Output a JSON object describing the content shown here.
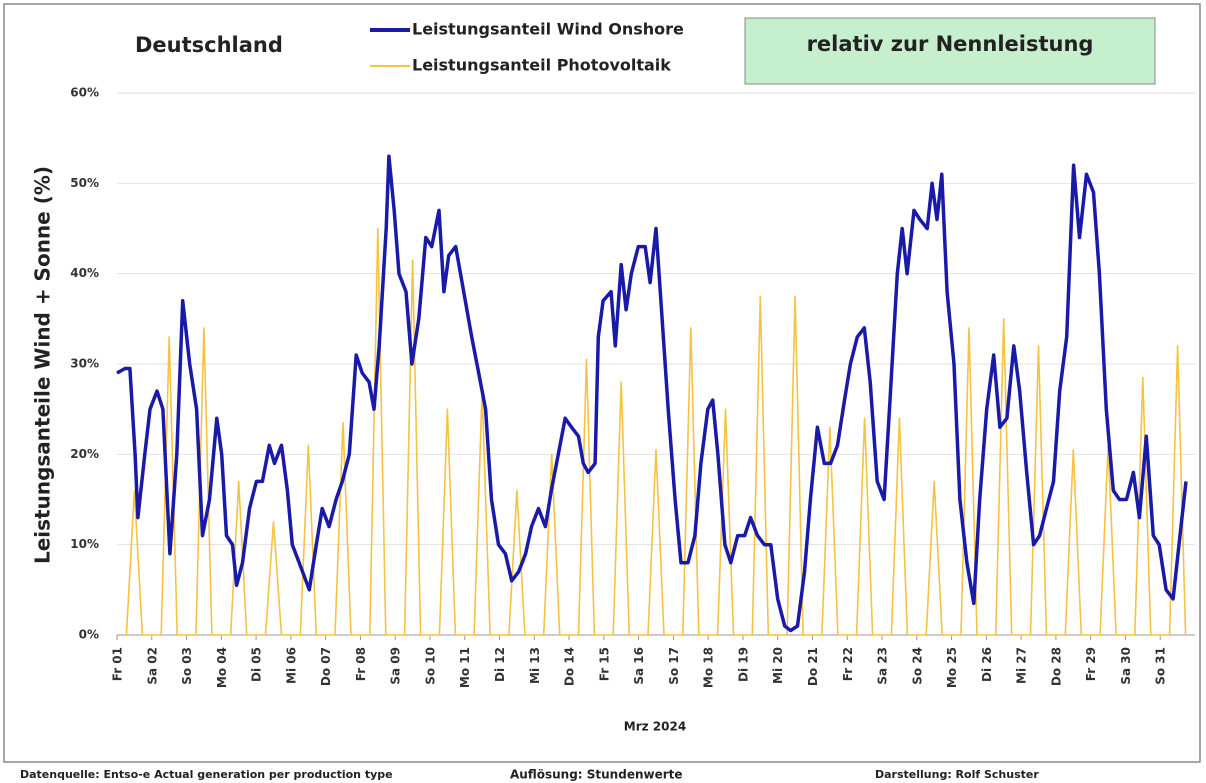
{
  "chart_data": {
    "type": "line",
    "title": "Deutschland",
    "subtitle": "relativ zur Nennleistung",
    "ylabel": "Leistungsanteile Wind + Sonne (%)",
    "xlabel": "Mrz 2024",
    "footer": [
      "Datenquelle: Entso-e  Actual generation per production type",
      "Auflösung: Stundenwerte",
      "Darstellung:  Rolf Schuster"
    ],
    "grid": true,
    "xlim": [
      0,
      31
    ],
    "xticks": [
      {
        "value": 0,
        "label": "Fr 01"
      },
      {
        "value": 1,
        "label": "Sa 02"
      },
      {
        "value": 2,
        "label": "So 03"
      },
      {
        "value": 3,
        "label": "Mo 04"
      },
      {
        "value": 4,
        "label": "Di 05"
      },
      {
        "value": 5,
        "label": "Mi 06"
      },
      {
        "value": 6,
        "label": "Do 07"
      },
      {
        "value": 7,
        "label": "Fr 08"
      },
      {
        "value": 8,
        "label": "Sa 09"
      },
      {
        "value": 9,
        "label": "So 10"
      },
      {
        "value": 10,
        "label": "Mo 11"
      },
      {
        "value": 11,
        "label": "Di 12"
      },
      {
        "value": 12,
        "label": "Mi 13"
      },
      {
        "value": 13,
        "label": "Do 14"
      },
      {
        "value": 14,
        "label": "Fr 15"
      },
      {
        "value": 15,
        "label": "Sa 16"
      },
      {
        "value": 16,
        "label": "So 17"
      },
      {
        "value": 17,
        "label": "Mo 18"
      },
      {
        "value": 18,
        "label": "Di 19"
      },
      {
        "value": 19,
        "label": "Mi 20"
      },
      {
        "value": 20,
        "label": "Do 21"
      },
      {
        "value": 21,
        "label": "Fr 22"
      },
      {
        "value": 22,
        "label": "Sa 23"
      },
      {
        "value": 23,
        "label": "So 24"
      },
      {
        "value": 24,
        "label": "Mo 25"
      },
      {
        "value": 25,
        "label": "Di 26"
      },
      {
        "value": 26,
        "label": "Mi 27"
      },
      {
        "value": 27,
        "label": "Do 28"
      },
      {
        "value": 28,
        "label": "Fr 29"
      },
      {
        "value": 29,
        "label": "Sa 30"
      },
      {
        "value": 30,
        "label": "So 31"
      }
    ],
    "ylim": [
      0,
      60
    ],
    "yticks": [
      {
        "value": 0,
        "label": "0%"
      },
      {
        "value": 10,
        "label": "10%"
      },
      {
        "value": 20,
        "label": "20%"
      },
      {
        "value": 30,
        "label": "30%"
      },
      {
        "value": 40,
        "label": "40%"
      },
      {
        "value": 50,
        "label": "50%"
      },
      {
        "value": 60,
        "label": "60%"
      }
    ],
    "series": [
      {
        "name": "Leistungsanteil Photovoltaik",
        "color": "#f5c242",
        "x": [
          0.27,
          0.5,
          0.73,
          1.27,
          1.5,
          1.73,
          2.27,
          2.5,
          2.73,
          3.27,
          3.5,
          3.73,
          4.27,
          4.5,
          4.73,
          5.27,
          5.5,
          5.73,
          6.27,
          6.5,
          6.73,
          7.27,
          7.5,
          7.73,
          8.27,
          8.5,
          8.73,
          9.27,
          9.5,
          9.73,
          10.27,
          10.5,
          10.73,
          11.27,
          11.5,
          11.73,
          12.27,
          12.5,
          12.73,
          13.27,
          13.5,
          13.73,
          14.27,
          14.5,
          14.73,
          15.27,
          15.5,
          15.73,
          16.27,
          16.5,
          16.73,
          17.27,
          17.5,
          17.73,
          18.27,
          18.5,
          18.73,
          19.27,
          19.5,
          19.73,
          20.27,
          20.5,
          20.73,
          21.27,
          21.5,
          21.73,
          22.27,
          22.5,
          22.73,
          23.27,
          23.5,
          23.73,
          24.27,
          24.5,
          24.73,
          25.27,
          25.5,
          25.73,
          26.27,
          26.5,
          26.73,
          27.27,
          27.5,
          27.73,
          28.27,
          28.5,
          28.73,
          29.27,
          29.5,
          29.73,
          30.27,
          30.5,
          30.73
        ],
        "values": [
          0,
          16,
          0,
          0,
          33,
          0,
          0,
          34,
          0,
          0,
          17,
          0,
          0,
          12.5,
          0,
          0,
          21,
          0,
          0,
          23.5,
          0,
          0,
          45,
          0,
          0,
          41.5,
          0,
          0,
          25,
          0,
          0,
          27,
          0,
          0,
          16,
          0,
          0,
          20,
          0,
          0,
          30.5,
          0,
          0,
          28,
          0,
          0,
          20.5,
          0,
          0,
          34,
          0,
          0,
          25,
          0,
          0,
          37.5,
          0,
          0,
          37.5,
          0,
          0,
          23,
          0,
          0,
          24,
          0,
          0,
          24,
          0,
          0,
          17,
          0,
          0,
          34,
          0,
          0,
          35,
          0,
          0,
          32,
          0,
          0,
          20.5,
          0,
          0,
          21,
          0,
          0,
          28.5,
          0,
          0,
          32,
          0
        ]
      },
      {
        "name": "Leistungsanteil Wind Onshore",
        "color": "#1a1aa8",
        "x": [
          0,
          0.23,
          0.37,
          0.52,
          0.6,
          0.8,
          0.95,
          1.15,
          1.32,
          1.52,
          1.72,
          1.89,
          2.09,
          2.29,
          2.46,
          2.66,
          2.87,
          3.01,
          3.15,
          3.32,
          3.44,
          3.61,
          3.81,
          4.01,
          4.18,
          4.38,
          4.53,
          4.73,
          4.9,
          5.04,
          5.24,
          5.53,
          5.73,
          5.9,
          6.1,
          6.3,
          6.48,
          6.68,
          6.88,
          7.05,
          7.25,
          7.39,
          7.54,
          7.74,
          7.82,
          7.97,
          8.11,
          8.31,
          8.48,
          8.68,
          8.88,
          9.05,
          9.26,
          9.4,
          9.54,
          9.74,
          9.97,
          10.2,
          10.4,
          10.6,
          10.77,
          10.97,
          11.17,
          11.35,
          11.55,
          11.75,
          11.92,
          12.12,
          12.32,
          12.49,
          12.69,
          12.89,
          13.07,
          13.27,
          13.41,
          13.55,
          13.75,
          13.84,
          13.98,
          14.21,
          14.33,
          14.5,
          14.64,
          14.79,
          14.99,
          15.19,
          15.33,
          15.5,
          15.64,
          15.85,
          16.05,
          16.22,
          16.42,
          16.62,
          16.79,
          16.99,
          17.13,
          17.28,
          17.48,
          17.65,
          17.85,
          18.05,
          18.22,
          18.42,
          18.62,
          18.8,
          19.0,
          19.2,
          19.37,
          19.57,
          19.77,
          19.94,
          20.14,
          20.34,
          20.52,
          20.72,
          20.92,
          21.09,
          21.29,
          21.49,
          21.66,
          21.86,
          22.06,
          22.23,
          22.44,
          22.58,
          22.72,
          22.92,
          23.09,
          23.3,
          23.44,
          23.58,
          23.72,
          23.87,
          24.07,
          24.24,
          24.44,
          24.64,
          24.81,
          25.01,
          25.21,
          25.39,
          25.59,
          25.79,
          25.96,
          26.16,
          26.36,
          26.53,
          26.73,
          26.93,
          27.11,
          27.31,
          27.51,
          27.68,
          27.88,
          28.08,
          28.25,
          28.45,
          28.65,
          28.83,
          29.03,
          29.23,
          29.4,
          29.6,
          29.8,
          29.97,
          30.17,
          30.37,
          30.54,
          30.74
        ],
        "values": [
          29,
          29.5,
          29.5,
          20,
          13,
          20,
          25,
          27,
          25,
          9,
          20,
          37,
          30,
          25,
          11,
          15,
          24,
          20,
          11,
          10,
          5.5,
          8,
          14,
          17,
          17,
          21,
          19,
          21,
          16,
          10,
          8,
          5,
          10,
          14,
          12,
          15,
          17,
          20,
          31,
          29,
          28,
          25,
          32,
          45,
          53,
          47,
          40,
          38,
          30,
          35,
          44,
          43,
          47,
          38,
          42,
          43,
          38,
          33,
          29,
          25,
          15,
          10,
          9,
          6,
          7,
          9,
          12,
          14,
          12,
          16,
          20,
          24,
          23,
          22,
          19,
          18,
          19,
          33,
          37,
          38,
          32,
          41,
          36,
          40,
          43,
          43,
          39,
          45,
          37,
          25,
          15,
          8,
          8,
          11,
          19,
          25,
          26,
          20,
          10,
          8,
          11,
          11,
          13,
          11,
          10,
          10,
          4,
          1,
          0.5,
          1,
          7,
          15,
          23,
          19,
          19,
          21,
          26,
          30,
          33,
          34,
          28,
          17,
          15,
          26,
          40,
          45,
          40,
          47,
          46,
          45,
          50,
          46,
          51,
          38,
          30,
          15,
          8,
          3.5,
          15,
          25,
          31,
          23,
          24,
          32,
          27,
          18,
          10,
          11,
          14,
          17,
          27,
          33,
          52,
          44,
          51,
          49,
          40,
          25,
          16,
          15,
          15,
          18,
          13,
          22,
          11,
          10,
          5,
          4,
          10,
          17
        ]
      }
    ]
  }
}
